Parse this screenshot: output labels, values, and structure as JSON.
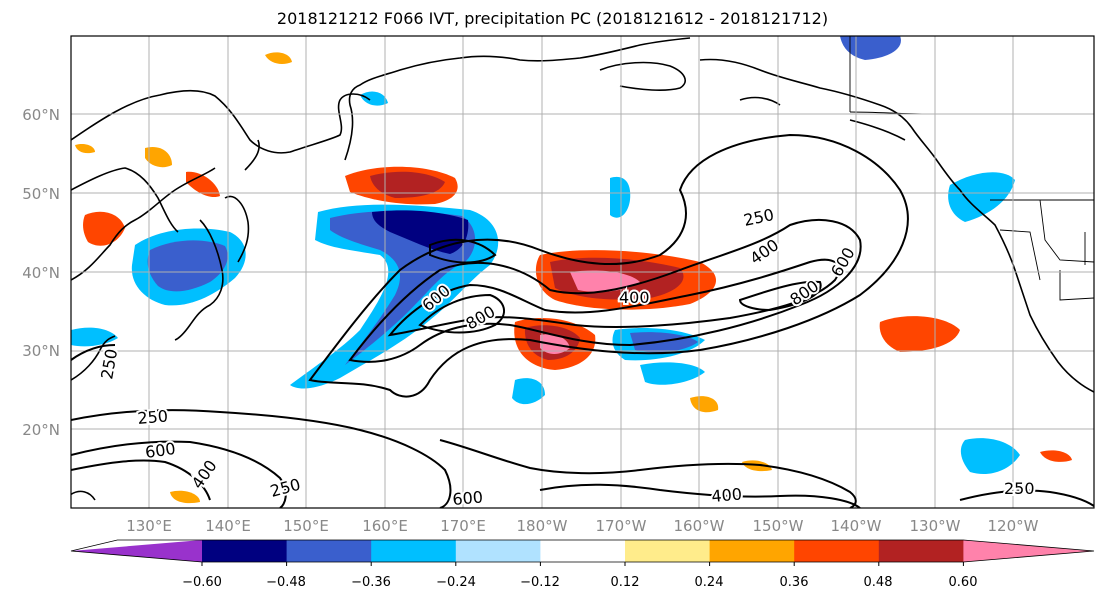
{
  "title": "2018121212 F066 IVT, precipitation PC (2018121612 - 2018121712)",
  "lon_labels": [
    "130°E",
    "140°E",
    "150°E",
    "160°E",
    "170°E",
    "180°W",
    "170°W",
    "160°W",
    "150°W",
    "140°W",
    "130°W",
    "120°W"
  ],
  "lat_labels": [
    "20°N",
    "30°N",
    "40°N",
    "50°N",
    "60°N"
  ],
  "colorbar": {
    "colors": [
      "#9932cc",
      "#000080",
      "#3a5fcd",
      "#00bfff",
      "#b0e2ff",
      "#ffffff",
      "#ffec8b",
      "#ffa500",
      "#ff4500",
      "#b22222",
      "#ff82ab"
    ],
    "tick_labels": [
      "−0.60",
      "−0.48",
      "−0.36",
      "−0.24",
      "−0.12",
      "0.12",
      "0.24",
      "0.36",
      "0.48",
      "0.60"
    ]
  },
  "ivt_contour_labels": [
    {
      "text": "250"
    },
    {
      "text": "400"
    },
    {
      "text": "600"
    },
    {
      "text": "800"
    },
    {
      "text": "400"
    },
    {
      "text": "600"
    },
    {
      "text": "800"
    },
    {
      "text": "250"
    },
    {
      "text": "250"
    },
    {
      "text": "600"
    },
    {
      "text": "400"
    },
    {
      "text": "250"
    },
    {
      "text": "600"
    },
    {
      "text": "400"
    },
    {
      "text": "250"
    }
  ]
}
